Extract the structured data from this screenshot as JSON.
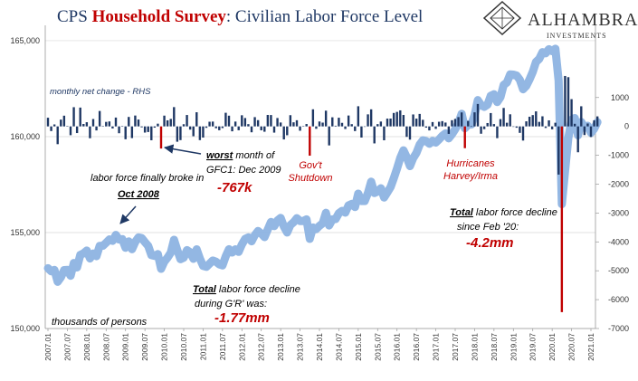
{
  "chart_data": {
    "type": "line_bar_combo",
    "title_parts": [
      "CPS ",
      "Household Survey",
      ": Civilian Labor Force Level"
    ],
    "logo": {
      "name": "ALHAMBRA",
      "tagline": "INVESTMENTS"
    },
    "categories": [
      "2007.01",
      null,
      null,
      null,
      null,
      null,
      "2007.07",
      null,
      null,
      null,
      null,
      null,
      "2008.01",
      null,
      null,
      null,
      null,
      null,
      "2008.07",
      null,
      null,
      null,
      null,
      null,
      "2009.01",
      null,
      null,
      null,
      null,
      null,
      "2009.07",
      null,
      null,
      null,
      null,
      null,
      "2010.01",
      null,
      null,
      null,
      null,
      null,
      "2010.07",
      null,
      null,
      null,
      null,
      null,
      "2011.01",
      null,
      null,
      null,
      null,
      null,
      "2011.07",
      null,
      null,
      null,
      null,
      null,
      "2012.01",
      null,
      null,
      null,
      null,
      null,
      "2012.07",
      null,
      null,
      null,
      null,
      null,
      "2013.01",
      null,
      null,
      null,
      null,
      null,
      "2013.07",
      null,
      null,
      null,
      null,
      null,
      "2014.01",
      null,
      null,
      null,
      null,
      null,
      "2014.07",
      null,
      null,
      null,
      null,
      null,
      "2015.01",
      null,
      null,
      null,
      null,
      null,
      "2015.07",
      null,
      null,
      null,
      null,
      null,
      "2016.01",
      null,
      null,
      null,
      null,
      null,
      "2016.07",
      null,
      null,
      null,
      null,
      null,
      "2017.01",
      null,
      null,
      null,
      null,
      null,
      "2017.07",
      null,
      null,
      null,
      null,
      null,
      "2018.01",
      null,
      null,
      null,
      null,
      null,
      "2018.07",
      null,
      null,
      null,
      null,
      null,
      "2019.01",
      null,
      null,
      null,
      null,
      null,
      "2019.07",
      null,
      null,
      null,
      null,
      null,
      "2020.01",
      null,
      null,
      null,
      null,
      null,
      "2020.07",
      null,
      null,
      null,
      null,
      null,
      "2021.01",
      null,
      null
    ],
    "series": [
      {
        "kind": "line",
        "color": "#8db3e2",
        "values": [
          153144,
          152983,
          153051,
          152435,
          152670,
          153041,
          153054,
          152749,
          153414,
          153183,
          153835,
          153918,
          154063,
          153653,
          153908,
          153769,
          154303,
          154313,
          154469,
          154641,
          154570,
          154876,
          154639,
          154655,
          154210,
          154538,
          154133,
          154509,
          154747,
          154716,
          154502,
          154307,
          153827,
          153784,
          153878,
          153111,
          153484,
          153694,
          153954,
          154622,
          154091,
          153616,
          153691,
          154086,
          153975,
          153635,
          154125,
          153650,
          153263,
          153214,
          153376,
          153543,
          153479,
          153346,
          153288,
          153760,
          154131,
          153961,
          154128,
          153995,
          154381,
          154671,
          154749,
          154545,
          154866,
          155083,
          154948,
          154763,
          155160,
          155554,
          155338,
          155628,
          155763,
          155312,
          155005,
          155394,
          155536,
          155749,
          155599,
          155605,
          155687,
          154673,
          155265,
          155182,
          155352,
          155483,
          156028,
          155369,
          155684,
          155707,
          156007,
          156130,
          156040,
          156417,
          156494,
          156332,
          157030,
          156644,
          156643,
          157060,
          157651,
          157062,
          157140,
          157308,
          156827,
          157096,
          157367,
          157833,
          158335,
          158890,
          159286,
          158924,
          158466,
          158880,
          159150,
          159582,
          159810,
          159768,
          159629,
          159779,
          159693,
          159854,
          160036,
          160169,
          159910,
          160124,
          160383,
          160706,
          161190,
          160436,
          160626,
          160636,
          161123,
          161900,
          161646,
          161551,
          161667,
          162129,
          162209,
          161802,
          162055,
          162694,
          162821,
          163240,
          163229,
          163184,
          162960,
          162470,
          162646,
          162981,
          163373,
          163894,
          164051,
          164401,
          164347,
          164556,
          164455,
          164582,
          162913,
          156481,
          158227,
          159932,
          160876,
          160966,
          160070,
          160767,
          160467,
          160567,
          160198,
          160409,
          160756
        ]
      },
      {
        "kind": "bar",
        "axis": "y2",
        "color": "#1f3864",
        "highlight_color": "#c00000",
        "highlight_indices": [
          35,
          81,
          129,
          159
        ],
        "values": [
          300,
          -161,
          68,
          -616,
          235,
          371,
          13,
          -305,
          665,
          -231,
          652,
          83,
          145,
          -410,
          255,
          -139,
          534,
          10,
          156,
          172,
          -71,
          306,
          -237,
          16,
          -445,
          328,
          -405,
          376,
          238,
          -31,
          -214,
          -195,
          -480,
          -43,
          94,
          -767,
          373,
          210,
          260,
          668,
          -531,
          -475,
          75,
          395,
          -111,
          -340,
          490,
          -475,
          -387,
          -49,
          162,
          167,
          -64,
          -133,
          -58,
          472,
          371,
          -170,
          167,
          -133,
          386,
          290,
          78,
          -204,
          321,
          217,
          -135,
          -185,
          397,
          394,
          -216,
          290,
          135,
          -451,
          -307,
          389,
          142,
          213,
          -150,
          6,
          82,
          -1014,
          592,
          -83,
          170,
          131,
          545,
          -659,
          315,
          23,
          300,
          123,
          -90,
          377,
          77,
          -162,
          698,
          -386,
          -1,
          417,
          591,
          -589,
          78,
          168,
          -481,
          269,
          271,
          466,
          502,
          555,
          396,
          -362,
          -458,
          414,
          270,
          432,
          228,
          -42,
          -139,
          150,
          -86,
          161,
          182,
          133,
          -259,
          214,
          259,
          323,
          484,
          -754,
          190,
          10,
          487,
          777,
          -254,
          -95,
          116,
          462,
          80,
          -407,
          253,
          639,
          127,
          419,
          -11,
          -45,
          -224,
          -490,
          176,
          335,
          392,
          521,
          157,
          350,
          -54,
          209,
          -101,
          127,
          -1669,
          -6432,
          1746,
          1705,
          944,
          90,
          -896,
          697,
          -300,
          100,
          -369,
          211,
          347
        ]
      }
    ],
    "ylim": [
      150000,
      165800
    ],
    "yticks": [
      {
        "value": 150000,
        "label": "150,000"
      },
      {
        "value": 155000,
        "label": "155,000"
      },
      {
        "value": 160000,
        "label": "160,000"
      },
      {
        "value": 165000,
        "label": "165,000"
      }
    ],
    "y2lim": [
      -7000,
      3500
    ],
    "y2ticks": [
      1000,
      0,
      -1000,
      -2000,
      -3000,
      -4000,
      -5000,
      -6000,
      -7000
    ],
    "grid": true,
    "annotations": [
      [
        [
          "monthly net change - RHS"
        ]
      ],
      [
        [
          "labor force finally broke in"
        ],
        [
          "Oct 2008"
        ]
      ],
      [
        [
          "worst",
          " month of"
        ],
        [
          "GFC1: Dec 2009"
        ],
        [
          "-767k"
        ]
      ],
      [
        [
          "Gov't"
        ],
        [
          "Shutdown"
        ]
      ],
      [
        [
          "Hurricanes"
        ],
        [
          "Harvey/Irma"
        ]
      ],
      [
        [
          "Total",
          " labor force decline"
        ],
        [
          "since Feb '20:"
        ],
        [
          "-4.2mm"
        ]
      ],
      [
        [
          "Total",
          " labor force decline"
        ],
        [
          "during G'R' was:"
        ],
        [
          "-1.77mm"
        ]
      ],
      [
        [
          "thousands of persons"
        ]
      ]
    ]
  }
}
